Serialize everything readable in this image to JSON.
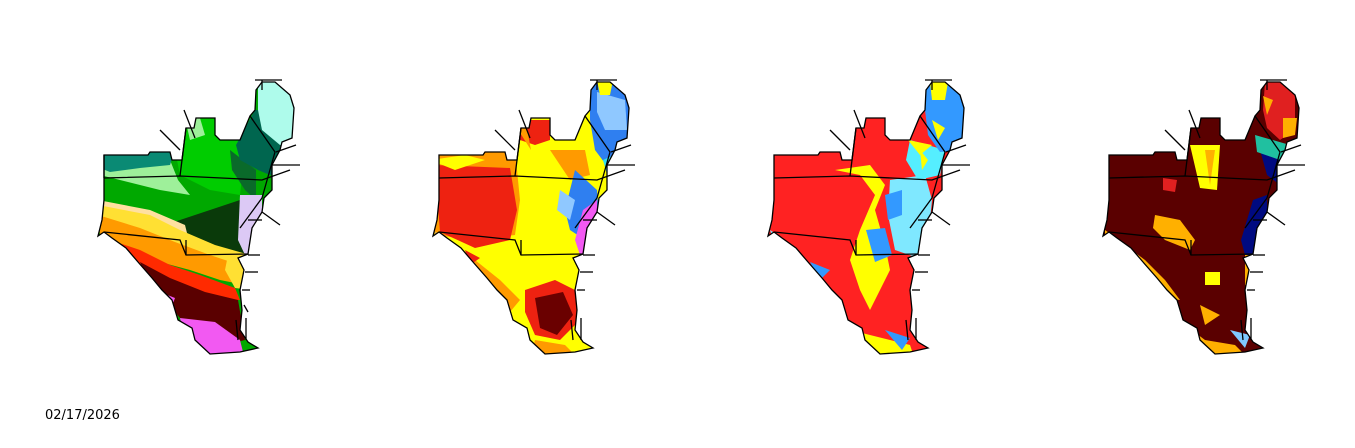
{
  "date_label": "02/17/2026",
  "maps": [
    {
      "id": "map-1",
      "palette": {
        "teal": "#0a8a74",
        "dark_teal": "#00664f",
        "light_green": "#9ef09a",
        "green": "#00cc00",
        "mid_green": "#00a800",
        "dark_green": "#0a3a0a",
        "aqua": "#aefbeb",
        "lavender": "#dcc9f5",
        "yellow": "#ffe033",
        "orange": "#ff9a00",
        "red": "#ff2a00",
        "dark_red": "#5a0000",
        "magenta": "#f259f2"
      }
    },
    {
      "id": "map-2",
      "palette": {
        "red": "#ee2211",
        "orange": "#ff9a00",
        "yellow": "#ffff00",
        "light_blue": "#8fc8ff",
        "blue": "#2f7ff0",
        "cyan": "#33e0f0",
        "magenta": "#f259f2",
        "dark_red": "#6a0000"
      }
    },
    {
      "id": "map-3",
      "palette": {
        "red": "#ff2222",
        "yellow": "#ffff00",
        "light_blue": "#7fe8ff",
        "blue": "#3399ff",
        "cyan": "#55eeff"
      }
    },
    {
      "id": "map-4",
      "palette": {
        "dark_red": "#5a0000",
        "orange": "#ffb000",
        "yellow": "#ffff00",
        "red": "#e02020",
        "navy": "#000a80",
        "light_blue": "#80c8ff",
        "teal": "#20c0a0"
      }
    }
  ]
}
